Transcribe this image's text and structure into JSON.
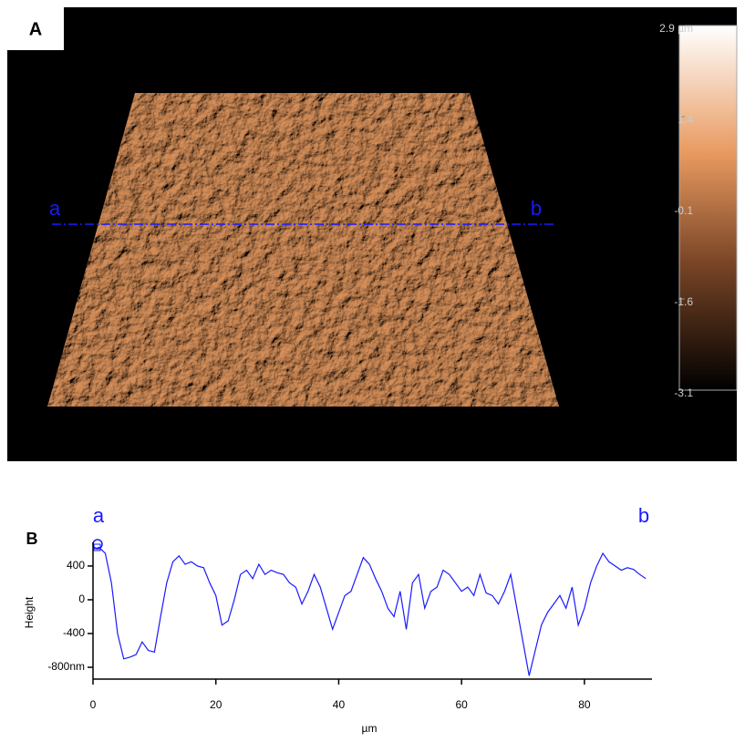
{
  "panel_a": {
    "label": "A",
    "line_start": "a",
    "line_end": "b",
    "colorbar": {
      "lim": [
        -3.1,
        2.9
      ],
      "ticks": [
        {
          "value": 2.9,
          "label": "2.9 µm"
        },
        1.4,
        -0.1,
        -1.6,
        -3.1
      ]
    }
  },
  "chart_data": {
    "type": "line",
    "panel_label": "B",
    "start_label": "a",
    "end_label": "b",
    "x_label": "µm",
    "y_label": "Height",
    "color": "#1a1aff",
    "x": [
      0,
      1,
      2,
      3,
      4,
      5,
      6,
      7,
      8,
      9,
      10,
      11,
      12,
      13,
      14,
      15,
      16,
      17,
      18,
      19,
      20,
      21,
      22,
      23,
      24,
      25,
      26,
      27,
      28,
      29,
      30,
      31,
      32,
      33,
      34,
      35,
      36,
      37,
      38,
      39,
      40,
      41,
      42,
      43,
      44,
      45,
      46,
      47,
      48,
      49,
      50,
      51,
      52,
      53,
      54,
      55,
      56,
      57,
      58,
      59,
      60,
      61,
      62,
      63,
      64,
      65,
      66,
      67,
      68,
      69,
      70,
      71,
      72,
      73,
      74,
      75,
      76,
      77,
      78,
      79,
      80,
      81,
      82,
      83,
      84,
      85,
      86,
      87,
      88,
      89,
      90
    ],
    "values": [
      600,
      620,
      550,
      200,
      -400,
      -700,
      -680,
      -650,
      -500,
      -600,
      -620,
      -200,
      200,
      450,
      520,
      420,
      450,
      400,
      380,
      200,
      50,
      -300,
      -250,
      0,
      300,
      350,
      250,
      420,
      300,
      350,
      320,
      300,
      200,
      150,
      -50,
      100,
      300,
      150,
      -100,
      -350,
      -150,
      50,
      100,
      300,
      500,
      420,
      250,
      100,
      -100,
      -200,
      100,
      -350,
      200,
      300,
      -100,
      100,
      150,
      350,
      300,
      200,
      100,
      150,
      50,
      300,
      80,
      50,
      -50,
      100,
      300,
      -100,
      -500,
      -900,
      -600,
      -300,
      -150,
      -50,
      50,
      -100,
      150,
      -300,
      -100,
      200,
      400,
      550,
      450,
      400,
      350,
      380,
      360,
      300,
      250
    ],
    "xlim": [
      0,
      91
    ],
    "xticks": [
      0,
      20,
      40,
      60,
      80
    ],
    "ylim": [
      -940,
      680
    ],
    "yticks": [
      400,
      0,
      -400,
      {
        "value": -800,
        "label": "-800nm"
      }
    ]
  }
}
